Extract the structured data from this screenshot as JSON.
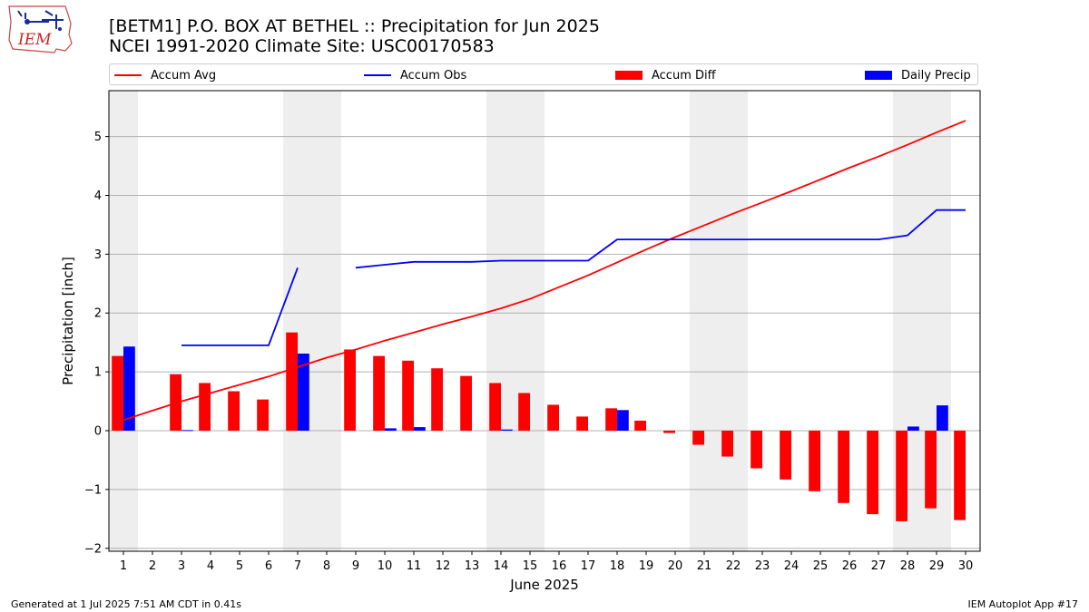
{
  "logo": {
    "text": "IEM"
  },
  "title": "[BETM1] P.O. BOX AT BETHEL :: Precipitation for Jun 2025",
  "subtitle": "NCEI 1991-2020 Climate Site: USC00170583",
  "footer": {
    "left": "Generated at 1 Jul 2025 7:51 AM CDT in 0.41s",
    "right": "IEM Autoplot App #17"
  },
  "chart_data": {
    "type": "bar",
    "xlabel": "June 2025",
    "ylabel": "Precipitation [inch]",
    "xlim": [
      0.5,
      30.5
    ],
    "ylim": [
      -2.05,
      5.78
    ],
    "yticks": [
      -2,
      -1,
      0,
      1,
      2,
      3,
      4,
      5
    ],
    "ytick_labels": [
      "−2",
      "−1",
      "0",
      "1",
      "2",
      "3",
      "4",
      "5"
    ],
    "days": [
      1,
      2,
      3,
      4,
      5,
      6,
      7,
      8,
      9,
      10,
      11,
      12,
      13,
      14,
      15,
      16,
      17,
      18,
      19,
      20,
      21,
      22,
      23,
      24,
      25,
      26,
      27,
      28,
      29,
      30
    ],
    "grid": "horizontal",
    "legend_position": "top",
    "weekend_shading": [
      [
        0.5,
        1.5
      ],
      [
        6.5,
        8.5
      ],
      [
        13.5,
        15.5
      ],
      [
        20.5,
        22.5
      ],
      [
        27.5,
        29.5
      ]
    ],
    "colors": {
      "avg": "#ff0000",
      "obs": "#0000ff",
      "diff": "#ff0000",
      "daily": "#0000ff",
      "shade": "#eeeeee",
      "grid": "#b0b0b0"
    },
    "series": [
      {
        "name": "Accum Avg",
        "kind": "line",
        "values": [
          0.18,
          0.34,
          0.5,
          0.64,
          0.78,
          0.92,
          1.08,
          1.24,
          1.38,
          1.53,
          1.67,
          1.81,
          1.94,
          2.08,
          2.24,
          2.44,
          2.64,
          2.86,
          3.08,
          3.29,
          3.49,
          3.69,
          3.88,
          4.07,
          4.27,
          4.47,
          4.66,
          4.86,
          5.07,
          5.27
        ]
      },
      {
        "name": "Accum Obs",
        "kind": "line",
        "values": [
          null,
          null,
          1.45,
          1.45,
          1.45,
          1.45,
          2.77,
          null,
          2.77,
          2.82,
          2.87,
          2.87,
          2.87,
          2.89,
          2.89,
          2.89,
          2.89,
          3.25,
          3.25,
          3.25,
          3.25,
          3.25,
          3.25,
          3.25,
          3.25,
          3.25,
          3.25,
          3.32,
          3.75,
          3.75
        ]
      },
      {
        "name": "Accum Diff",
        "kind": "bar",
        "values": [
          1.27,
          0,
          0.96,
          0.81,
          0.67,
          0.53,
          1.67,
          0,
          1.38,
          1.27,
          1.19,
          1.06,
          0.93,
          0.81,
          0.64,
          0.44,
          0.24,
          0.38,
          0.17,
          -0.04,
          -0.24,
          -0.44,
          -0.64,
          -0.83,
          -1.03,
          -1.23,
          -1.42,
          -1.54,
          -1.32,
          -1.52
        ]
      },
      {
        "name": "Daily Precip",
        "kind": "bar",
        "values": [
          1.43,
          0,
          0.01,
          0,
          0,
          0,
          1.31,
          0,
          0,
          0.04,
          0.06,
          0,
          0,
          0.02,
          0,
          0,
          0,
          0.35,
          0,
          0,
          0,
          0,
          0,
          0,
          0,
          0,
          0,
          0.07,
          0.43,
          0
        ]
      }
    ]
  }
}
